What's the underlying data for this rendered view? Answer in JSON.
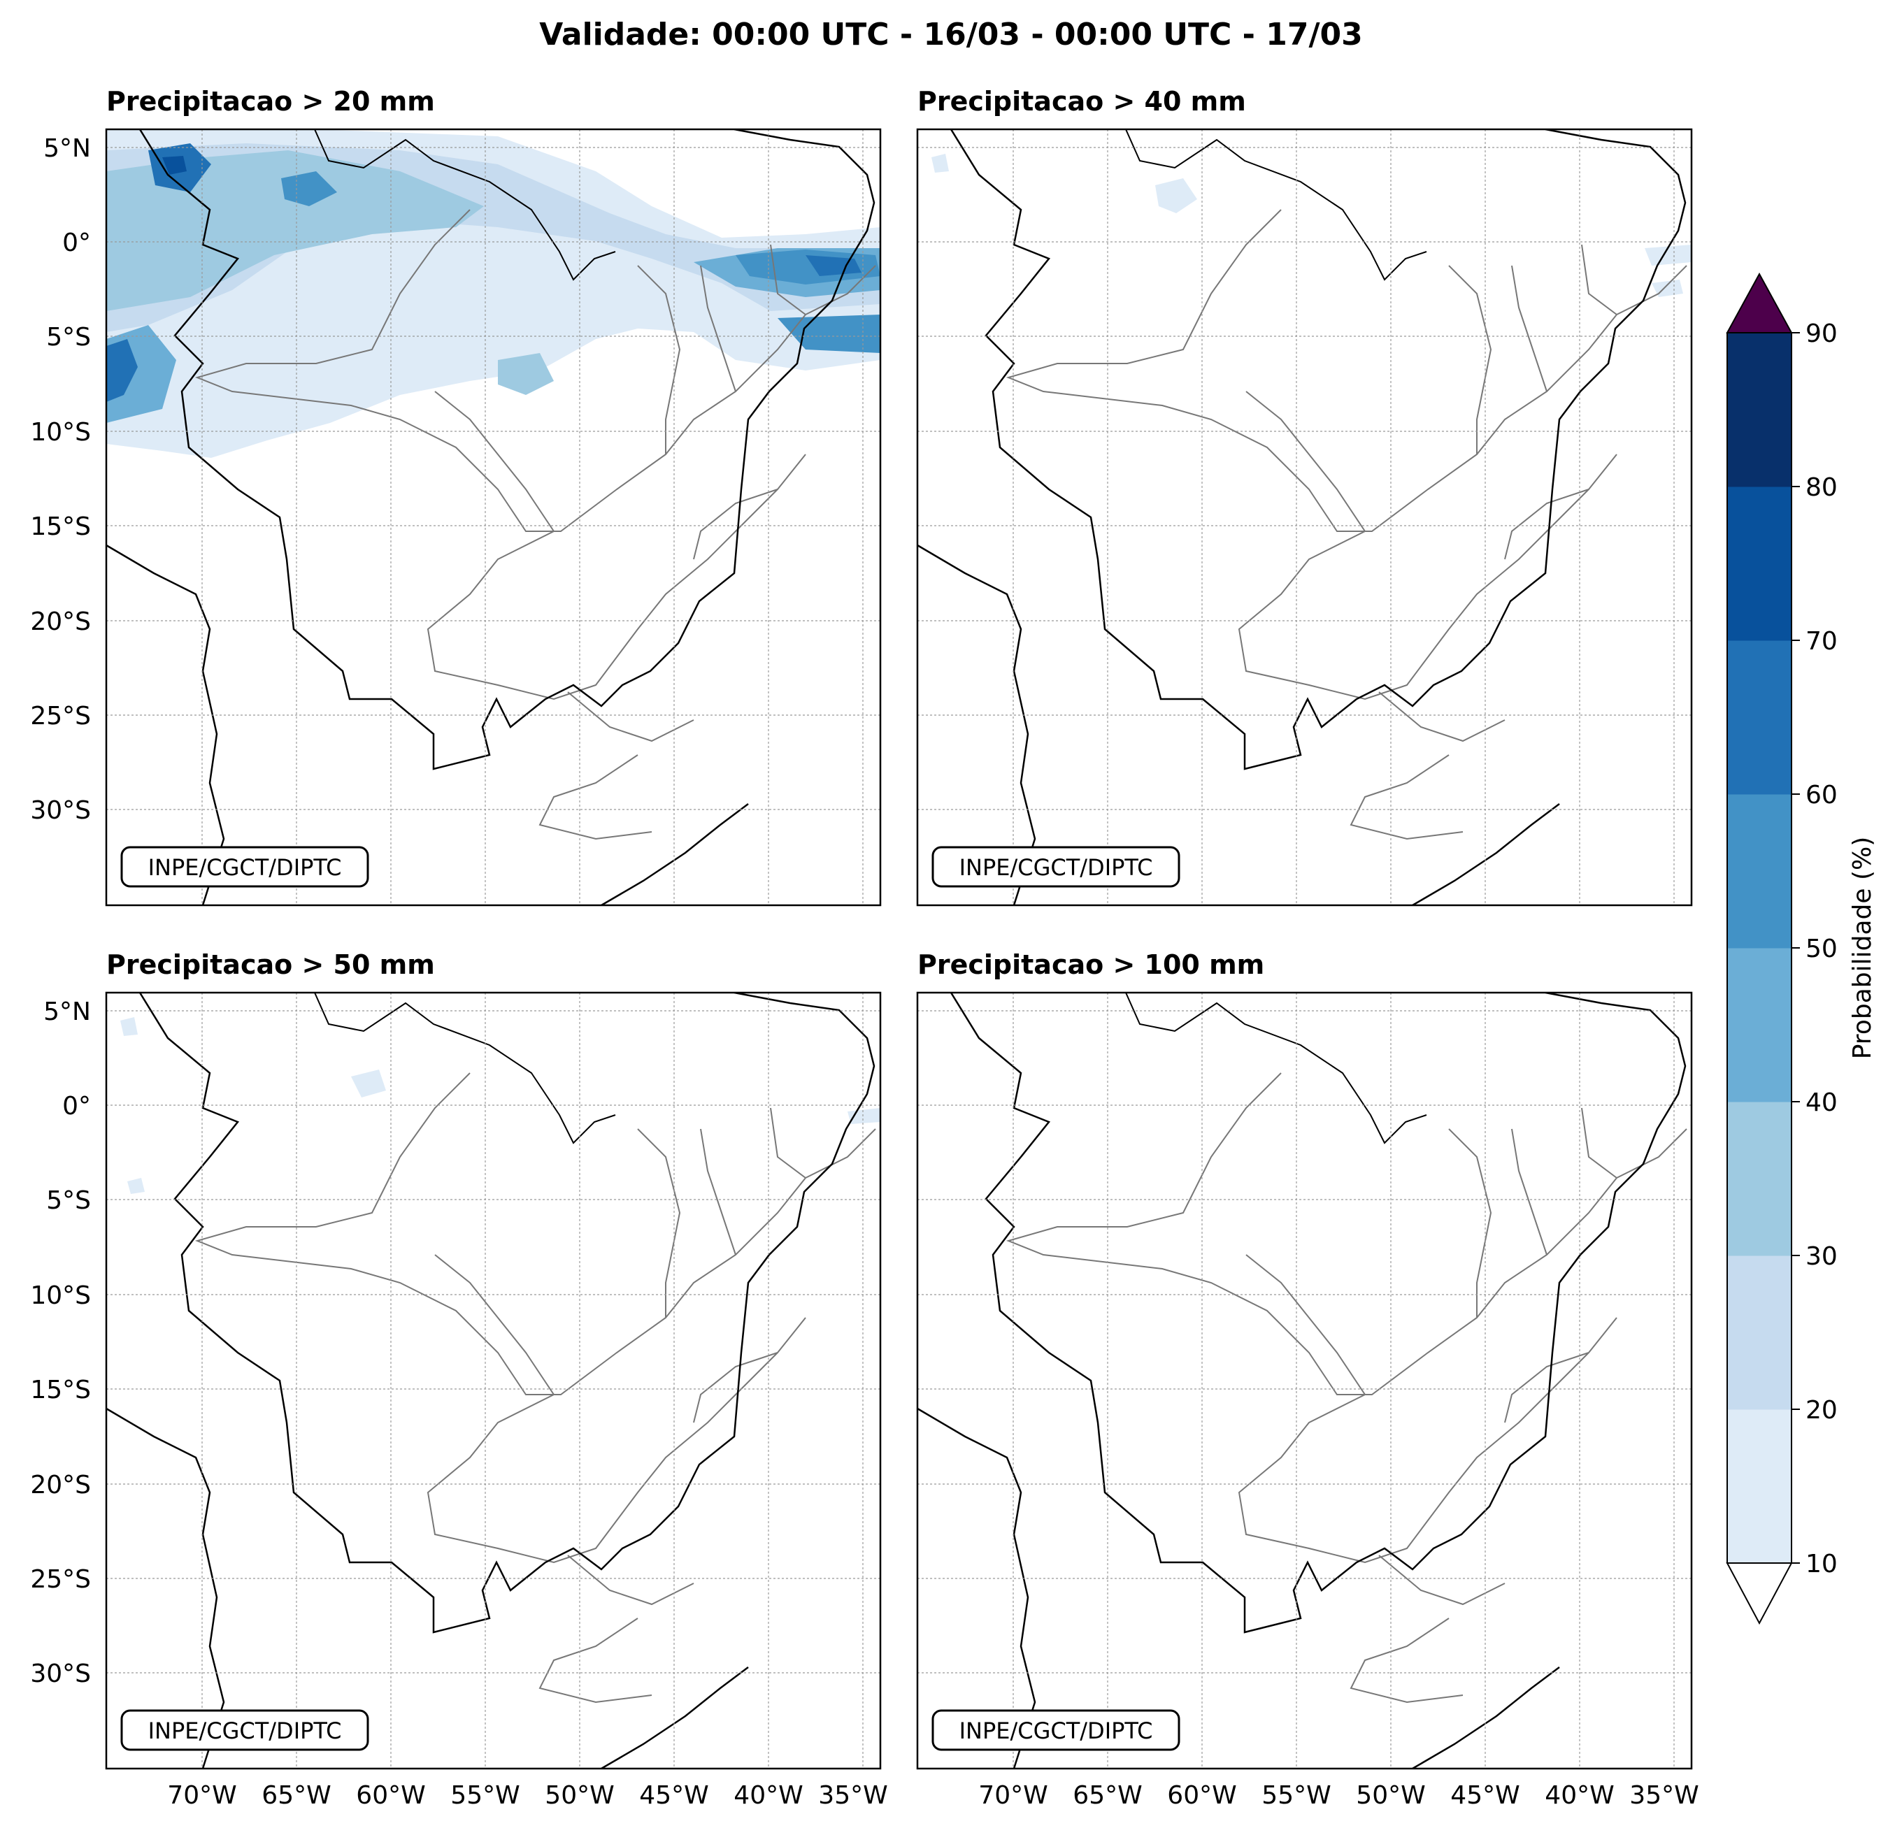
{
  "figure": {
    "title": "Validade: 00:00 UTC - 16/03 - 00:00 UTC - 17/03"
  },
  "panels": [
    {
      "title": "Precipitacao > 20 mm",
      "credit": "INPE/CGCT/DIPTC"
    },
    {
      "title": "Precipitacao > 40 mm",
      "credit": "INPE/CGCT/DIPTC"
    },
    {
      "title": "Precipitacao > 50 mm",
      "credit": "INPE/CGCT/DIPTC"
    },
    {
      "title": "Precipitacao > 100 mm",
      "credit": "INPE/CGCT/DIPTC"
    }
  ],
  "axes": {
    "lat_labels": [
      "5°N",
      "0°",
      "5°S",
      "10°S",
      "15°S",
      "20°S",
      "25°S",
      "30°S"
    ],
    "lon_labels": [
      "70°W",
      "65°W",
      "60°W",
      "55°W",
      "50°W",
      "45°W",
      "40°W",
      "35°W"
    ]
  },
  "colorbar": {
    "label": "Probabilidade (%)",
    "ticks": [
      "10",
      "20",
      "30",
      "40",
      "50",
      "60",
      "70",
      "80",
      "90"
    ],
    "colors": [
      "#deebf7",
      "#c6dbef",
      "#9ecae1",
      "#6baed6",
      "#4292c6",
      "#2171b5",
      "#08519c",
      "#08306b"
    ],
    "over_color": "#4d004b",
    "under_color": "#ffffff"
  }
}
